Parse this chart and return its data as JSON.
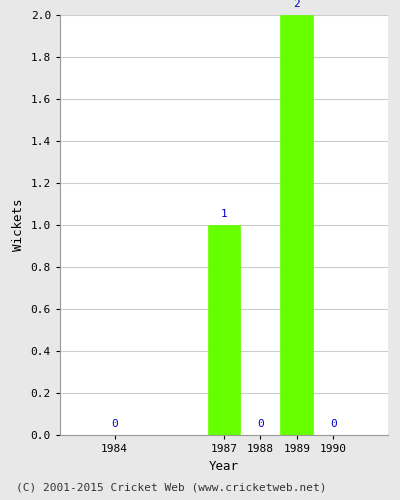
{
  "years": [
    1984,
    1987,
    1988,
    1989,
    1990
  ],
  "wickets": [
    0,
    1,
    0,
    2,
    0
  ],
  "bar_years": [
    1987,
    1989
  ],
  "bar_values": [
    1,
    2
  ],
  "bar_color": "#66ff00",
  "bar_edge_color": "#66ff00",
  "bar_width": 0.9,
  "xlabel": "Year",
  "ylabel": "Wickets",
  "ylim": [
    0.0,
    2.0
  ],
  "xlim_left": 1982.5,
  "xlim_right": 1991.5,
  "annotation_color": "#0000cc",
  "annotation_fontsize": 8,
  "axis_label_fontsize": 9,
  "tick_fontsize": 8,
  "grid_color": "#cccccc",
  "background_color": "#e8e8e8",
  "plot_bg_color": "#ffffff",
  "footer": "(C) 2001-2015 Cricket Web (www.cricketweb.net)",
  "footer_fontsize": 8,
  "footer_color": "#333333",
  "spine_color": "#999999"
}
